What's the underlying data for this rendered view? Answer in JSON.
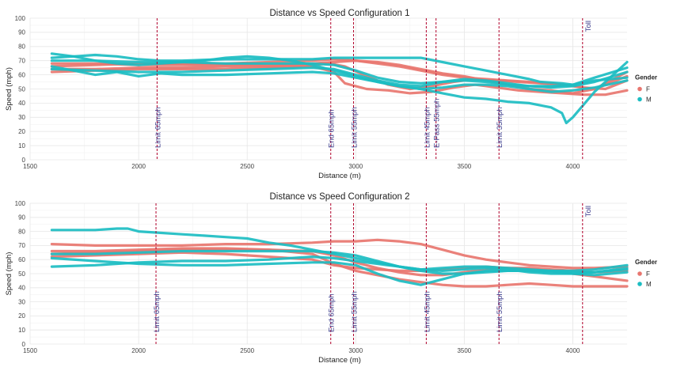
{
  "chart_data": [
    {
      "type": "line",
      "title": "Distance vs Speed Configuration 1",
      "xlabel": "Distance (m)",
      "ylabel": "Speed (mph)",
      "xlim": [
        1500,
        4250
      ],
      "ylim": [
        0,
        100
      ],
      "xticks": [
        1500,
        2000,
        2500,
        3000,
        3500,
        4000
      ],
      "yticks": [
        0,
        10,
        20,
        30,
        40,
        50,
        60,
        70,
        80,
        90,
        100
      ],
      "legend": {
        "title": "Gender",
        "entries": [
          {
            "label": "F",
            "color": "#E8766F"
          },
          {
            "label": "M",
            "color": "#1CBDC2"
          }
        ],
        "position": "right"
      },
      "markers": [
        {
          "x": 2085,
          "label": "Limit 65mph",
          "label_pos": "bottom"
        },
        {
          "x": 2885,
          "label": "End 65mph",
          "label_pos": "bottom"
        },
        {
          "x": 2990,
          "label": "Limit 55mph",
          "label_pos": "bottom"
        },
        {
          "x": 3325,
          "label": "Limit 45mph",
          "label_pos": "bottom"
        },
        {
          "x": 3370,
          "label": "E-Pass 55mph",
          "label_pos": "bottom"
        },
        {
          "x": 3660,
          "label": "Limit 35mph",
          "label_pos": "bottom"
        },
        {
          "x": 4045,
          "label": "Toll",
          "label_pos": "top"
        }
      ],
      "series": [
        {
          "group": "F",
          "x": [
            1600,
            1800,
            2000,
            2200,
            2400,
            2600,
            2800,
            2900,
            3000,
            3100,
            3200,
            3300,
            3400,
            3500,
            3600,
            3700,
            3800,
            3900,
            4000,
            4100,
            4250
          ],
          "y": [
            66,
            67,
            68,
            68,
            68,
            69,
            70,
            71,
            70,
            69,
            67,
            64,
            61,
            59,
            56,
            53,
            50,
            49,
            47,
            50,
            59
          ]
        },
        {
          "group": "F",
          "x": [
            1600,
            1800,
            2000,
            2200,
            2400,
            2600,
            2800,
            2880,
            2950,
            3050,
            3150,
            3250,
            3350,
            3450,
            3550,
            3650,
            3750,
            3850,
            3950,
            4050,
            4150,
            4250
          ],
          "y": [
            64,
            64,
            65,
            65,
            66,
            66,
            67,
            68,
            66,
            59,
            53,
            50,
            52,
            55,
            57,
            56,
            55,
            54,
            53,
            51,
            50,
            56
          ]
        },
        {
          "group": "F",
          "x": [
            1600,
            1800,
            2000,
            2200,
            2400,
            2600,
            2800,
            2900,
            2950,
            3050,
            3150,
            3250,
            3350,
            3450,
            3550,
            3650,
            3750,
            3850,
            3950,
            4050,
            4150,
            4250
          ],
          "y": [
            62,
            63,
            64,
            64,
            64,
            65,
            66,
            62,
            54,
            50,
            49,
            47,
            48,
            51,
            53,
            51,
            49,
            48,
            47,
            46,
            46,
            49
          ]
        },
        {
          "group": "F",
          "x": [
            1600,
            1800,
            2000,
            2200,
            2400,
            2600,
            2800,
            2900,
            3000,
            3100,
            3200,
            3300,
            3400,
            3500,
            3600,
            3700,
            3800,
            3900,
            4000,
            4100,
            4250
          ],
          "y": [
            68,
            68,
            67,
            67,
            67,
            67,
            68,
            69,
            70,
            68,
            66,
            63,
            60,
            58,
            57,
            56,
            55,
            54,
            52,
            50,
            62
          ]
        },
        {
          "group": "M",
          "x": [
            1600,
            1700,
            1800,
            1900,
            2000,
            2100,
            2200,
            2400,
            2600,
            2800,
            2900,
            3000,
            3100,
            3200,
            3300,
            3400,
            3500,
            3600,
            3700,
            3800,
            3850,
            3950,
            4000,
            4100,
            4250
          ],
          "y": [
            72,
            73,
            74,
            73,
            71,
            70,
            70,
            71,
            71,
            71,
            72,
            72,
            72,
            72,
            72,
            69,
            66,
            63,
            60,
            57,
            55,
            54,
            53,
            58,
            65
          ]
        },
        {
          "group": "M",
          "x": [
            1600,
            1700,
            1800,
            1900,
            2000,
            2100,
            2200,
            2300,
            2400,
            2500,
            2600,
            2700,
            2800,
            2900,
            3000,
            3100,
            3200,
            3300,
            3400,
            3500,
            3600,
            3700,
            3800,
            3900,
            3950,
            3970,
            4000,
            4100,
            4250
          ],
          "y": [
            75,
            73,
            70,
            68,
            67,
            68,
            69,
            70,
            72,
            73,
            72,
            70,
            67,
            63,
            59,
            55,
            52,
            50,
            47,
            44,
            43,
            41,
            40,
            37,
            33,
            26,
            30,
            48,
            69
          ]
        },
        {
          "group": "M",
          "x": [
            1600,
            1800,
            2000,
            2200,
            2400,
            2600,
            2800,
            2900,
            3000,
            3100,
            3200,
            3300,
            3400,
            3500,
            3600,
            3700,
            3800,
            3900,
            4000,
            4100,
            4250
          ],
          "y": [
            64,
            63,
            62,
            62,
            63,
            64,
            65,
            64,
            60,
            56,
            53,
            52,
            55,
            57,
            56,
            54,
            52,
            51,
            52,
            55,
            62
          ]
        },
        {
          "group": "M",
          "x": [
            1600,
            1800,
            2000,
            2200,
            2400,
            2600,
            2800,
            2900,
            3000,
            3100,
            3200,
            3300,
            3400,
            3500,
            3600,
            3700,
            3800,
            3900,
            4000,
            4100,
            4250
          ],
          "y": [
            70,
            70,
            69,
            69,
            68,
            68,
            68,
            67,
            63,
            58,
            55,
            54,
            55,
            56,
            55,
            53,
            52,
            52,
            53,
            56,
            58
          ]
        },
        {
          "group": "M",
          "x": [
            1600,
            1700,
            1800,
            1900,
            2000,
            2100,
            2200,
            2400,
            2600,
            2800,
            2900,
            3000,
            3100,
            3200,
            3300,
            3400,
            3500,
            3600,
            3700,
            3800,
            3900,
            4000,
            4100,
            4250
          ],
          "y": [
            66,
            63,
            60,
            62,
            59,
            61,
            60,
            60,
            61,
            62,
            61,
            58,
            55,
            52,
            50,
            51,
            53,
            53,
            52,
            50,
            48,
            49,
            51,
            56
          ]
        }
      ]
    },
    {
      "type": "line",
      "title": "Distance vs Speed Configuration 2",
      "xlabel": "Distance (m)",
      "ylabel": "Speed (mph)",
      "xlim": [
        1500,
        4250
      ],
      "ylim": [
        0,
        100
      ],
      "xticks": [
        1500,
        2000,
        2500,
        3000,
        3500,
        4000
      ],
      "yticks": [
        0,
        10,
        20,
        30,
        40,
        50,
        60,
        70,
        80,
        90,
        100
      ],
      "legend": {
        "title": "Gender",
        "entries": [
          {
            "label": "F",
            "color": "#E8766F"
          },
          {
            "label": "M",
            "color": "#1CBDC2"
          }
        ],
        "position": "right"
      },
      "markers": [
        {
          "x": 2080,
          "label": "Limit 65mph",
          "label_pos": "bottom"
        },
        {
          "x": 2885,
          "label": "End 65mph",
          "label_pos": "bottom"
        },
        {
          "x": 2990,
          "label": "Limit 55mph",
          "label_pos": "bottom"
        },
        {
          "x": 3325,
          "label": "Limit 45mph",
          "label_pos": "bottom"
        },
        {
          "x": 3660,
          "label": "Limit 55mph",
          "label_pos": "bottom"
        },
        {
          "x": 4045,
          "label": "Toll",
          "label_pos": "top"
        }
      ],
      "series": [
        {
          "group": "F",
          "x": [
            1600,
            1800,
            2000,
            2200,
            2400,
            2600,
            2800,
            2900,
            3000,
            3100,
            3200,
            3300,
            3400,
            3500,
            3600,
            3700,
            3800,
            3900,
            4000,
            4100,
            4250
          ],
          "y": [
            71,
            70,
            70,
            70,
            71,
            71,
            72,
            73,
            73,
            74,
            73,
            71,
            67,
            63,
            60,
            58,
            56,
            55,
            54,
            54,
            55
          ]
        },
        {
          "group": "F",
          "x": [
            1600,
            1800,
            2000,
            2200,
            2400,
            2600,
            2800,
            2900,
            3000,
            3100,
            3200,
            3300,
            3400,
            3500,
            3600,
            3700,
            3800,
            3900,
            4000,
            4100,
            4250
          ],
          "y": [
            64,
            65,
            66,
            67,
            67,
            67,
            66,
            63,
            58,
            54,
            51,
            49,
            49,
            51,
            53,
            54,
            54,
            53,
            52,
            51,
            52
          ]
        },
        {
          "group": "F",
          "x": [
            1600,
            1800,
            2000,
            2200,
            2400,
            2600,
            2800,
            2900,
            3000,
            3100,
            3200,
            3300,
            3400,
            3500,
            3600,
            3700,
            3800,
            3900,
            4000,
            4100,
            4250
          ],
          "y": [
            66,
            66,
            67,
            68,
            68,
            67,
            64,
            57,
            52,
            49,
            46,
            44,
            42,
            41,
            41,
            42,
            43,
            42,
            41,
            41,
            41
          ]
        },
        {
          "group": "F",
          "x": [
            1600,
            1800,
            2000,
            2200,
            2400,
            2600,
            2800,
            2900,
            3000,
            3100,
            3200,
            3300,
            3400,
            3500,
            3600,
            3700,
            3800,
            3900,
            4000,
            4100,
            4250
          ],
          "y": [
            62,
            63,
            64,
            65,
            64,
            62,
            60,
            56,
            54,
            53,
            52,
            52,
            53,
            54,
            55,
            54,
            53,
            52,
            50,
            48,
            45
          ]
        },
        {
          "group": "M",
          "x": [
            1600,
            1700,
            1800,
            1900,
            1950,
            2000,
            2100,
            2200,
            2300,
            2400,
            2500,
            2600,
            2700,
            2800,
            2900,
            3000,
            3100,
            3200,
            3300,
            3400,
            3500,
            3600,
            3700,
            3800,
            3900,
            4000,
            4100,
            4250
          ],
          "y": [
            81,
            81,
            81,
            82,
            82,
            80,
            79,
            78,
            77,
            76,
            75,
            72,
            70,
            67,
            64,
            61,
            58,
            55,
            53,
            54,
            55,
            55,
            54,
            53,
            52,
            52,
            53,
            56
          ]
        },
        {
          "group": "M",
          "x": [
            1600,
            1800,
            2000,
            2200,
            2400,
            2600,
            2800,
            2900,
            3000,
            3100,
            3200,
            3300,
            3400,
            3500,
            3600,
            3700,
            3800,
            3900,
            4000,
            4100,
            4250
          ],
          "y": [
            64,
            64,
            65,
            66,
            66,
            66,
            66,
            65,
            63,
            59,
            55,
            52,
            50,
            50,
            51,
            52,
            52,
            52,
            51,
            51,
            53
          ]
        },
        {
          "group": "M",
          "x": [
            1600,
            1800,
            2000,
            2200,
            2400,
            2600,
            2800,
            2900,
            3000,
            3100,
            3200,
            3300,
            3400,
            3500,
            3600,
            3700,
            3800,
            3900,
            4000,
            4100,
            4250
          ],
          "y": [
            61,
            59,
            57,
            56,
            56,
            57,
            58,
            58,
            56,
            50,
            45,
            42,
            46,
            50,
            52,
            52,
            52,
            51,
            50,
            49,
            51
          ]
        },
        {
          "group": "M",
          "x": [
            1600,
            1800,
            2000,
            2200,
            2400,
            2600,
            2800,
            2900,
            3000,
            3100,
            3200,
            3300,
            3400,
            3500,
            3600,
            3700,
            3800,
            3900,
            4000,
            4100,
            4250
          ],
          "y": [
            55,
            56,
            58,
            59,
            59,
            60,
            62,
            61,
            59,
            57,
            55,
            53,
            52,
            53,
            54,
            53,
            51,
            50,
            50,
            51,
            54
          ]
        }
      ]
    }
  ]
}
